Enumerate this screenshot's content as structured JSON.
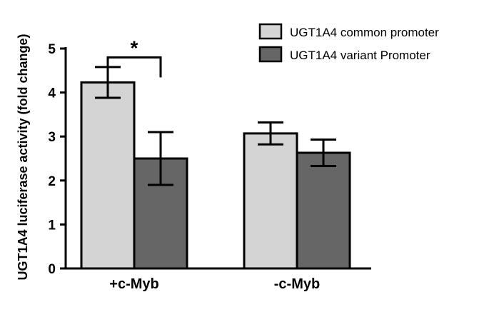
{
  "chart_data": {
    "type": "bar",
    "title": "",
    "xlabel": "",
    "ylabel": "UGT1A4 luciferase activity (fold change)",
    "ylim": [
      0,
      5
    ],
    "yticks": [
      0,
      1,
      2,
      3,
      4,
      5
    ],
    "categories": [
      "+c-Myb",
      "-c-Myb"
    ],
    "series": [
      {
        "name": "UGT1A4 common promoter",
        "color": "#d4d4d4",
        "values": [
          4.23,
          3.07
        ],
        "error": [
          0.35,
          0.25
        ]
      },
      {
        "name": "UGT1A4 variant Promoter",
        "color": "#666666",
        "values": [
          2.5,
          2.63
        ],
        "error": [
          0.6,
          0.3
        ]
      }
    ],
    "annotations": [
      {
        "text": "*",
        "category": "+c-Myb",
        "between_series": [
          0,
          1
        ],
        "level": 4.8
      }
    ],
    "legend": "top-right",
    "grid": false
  }
}
